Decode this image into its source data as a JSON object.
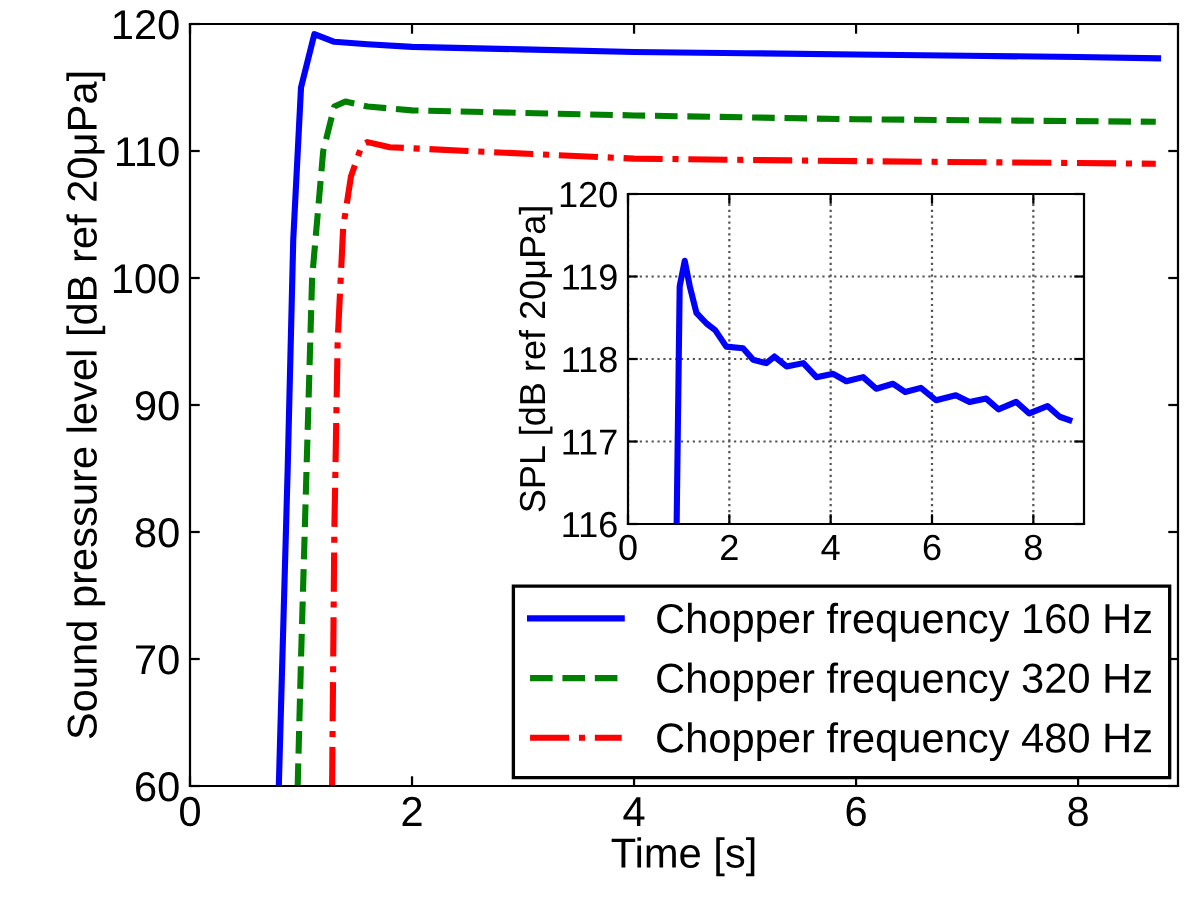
{
  "chart_data": [
    {
      "type": "line",
      "xlabel": "Time [s]",
      "ylabel": "Sound pressure level [dB ref 20μPa]",
      "xlim": [
        0,
        8.9
      ],
      "xticks": [
        0,
        2,
        4,
        6,
        8
      ],
      "ylim": [
        60,
        120
      ],
      "yticks": [
        60,
        70,
        80,
        90,
        100,
        110,
        120
      ],
      "grid": false,
      "legend": "bottom right",
      "series": [
        {
          "name": "Chopper frequency 160 Hz",
          "color": "#0000ff",
          "line_style": "solid",
          "x": [
            0.8,
            0.88,
            0.93,
            1.0,
            1.12,
            1.3,
            1.6,
            2,
            3,
            4,
            5,
            6,
            7,
            8,
            8.72
          ],
          "values": [
            60,
            85,
            103,
            115,
            119.2,
            118.6,
            118.4,
            118.2,
            118,
            117.8,
            117.7,
            117.6,
            117.5,
            117.4,
            117.3
          ]
        },
        {
          "name": "Chopper frequency 320 Hz",
          "color": "#008000",
          "line_style": "dashed",
          "x": [
            0.97,
            1.0,
            1.05,
            1.1,
            1.2,
            1.3,
            1.4,
            1.6,
            2,
            4,
            6,
            8.7
          ],
          "values": [
            60,
            70,
            85,
            100,
            110,
            113.5,
            113.9,
            113.5,
            113.2,
            112.8,
            112.5,
            112.3
          ]
        },
        {
          "name": "Chopper frequency 480 Hz",
          "color": "#ff0000",
          "line_style": "dashdot",
          "x": [
            1.28,
            1.3,
            1.33,
            1.38,
            1.45,
            1.55,
            1.6,
            1.8,
            2.5,
            4,
            6,
            8.7
          ],
          "values": [
            60,
            80,
            95,
            104,
            108,
            110.5,
            110.7,
            110.3,
            110,
            109.4,
            109.2,
            109.0
          ]
        }
      ]
    },
    {
      "type": "line",
      "ylabel": "SPL [dB ref 20μPa]",
      "xlim": [
        0,
        9
      ],
      "xticks": [
        0,
        2,
        4,
        6,
        8
      ],
      "ylim": [
        116,
        120
      ],
      "yticks": [
        116,
        117,
        118,
        119,
        120
      ],
      "grid": true,
      "series": [
        {
          "color": "#0000ff",
          "line_style": "solid",
          "x": [
            0.96,
            1.02,
            1.12,
            1.22,
            1.35,
            1.55,
            1.72,
            1.94,
            2.27,
            2.47,
            2.73,
            2.89,
            3.13,
            3.46,
            3.72,
            4.05,
            4.31,
            4.64,
            4.9,
            5.23,
            5.47,
            5.78,
            6.08,
            6.47,
            6.74,
            7.07,
            7.31,
            7.66,
            7.92,
            8.28,
            8.52,
            8.71
          ],
          "values": [
            116,
            118.88,
            119.19,
            118.88,
            118.56,
            118.43,
            118.35,
            118.15,
            118.13,
            117.99,
            117.95,
            118.03,
            117.91,
            117.95,
            117.78,
            117.82,
            117.73,
            117.78,
            117.64,
            117.7,
            117.6,
            117.65,
            117.5,
            117.56,
            117.48,
            117.52,
            117.39,
            117.48,
            117.34,
            117.43,
            117.3,
            117.26
          ]
        }
      ]
    }
  ]
}
